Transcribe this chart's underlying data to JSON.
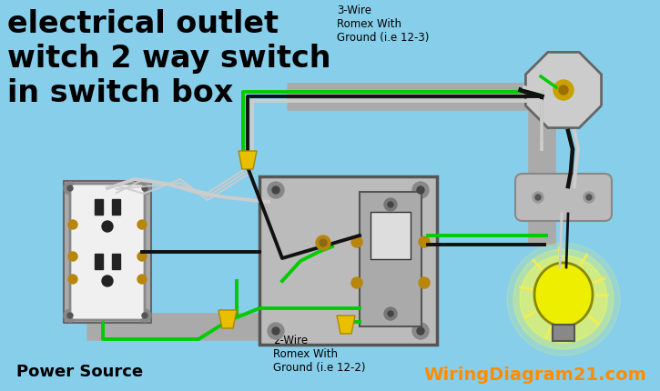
{
  "background_color": "#87CEEB",
  "title_lines": [
    "electrical outlet",
    "witch 2 way switch",
    "in switch box"
  ],
  "title_color": "#000000",
  "title_fontsize": 24,
  "label_3wire": "3-Wire\nRomex With\nGround (i.e 12-3)",
  "label_2wire": "2-Wire\nRomex With\nGround (i.e 12-2)",
  "label_power": "Power Source",
  "label_watermark": "WiringDiagram21.com",
  "watermark_color": "#FF8C00",
  "wire_green": "#00CC00",
  "wire_black": "#111111",
  "wire_white": "#CCCCCC",
  "conduit_gray": "#AAAAAA",
  "fig_width": 7.25,
  "fig_height": 4.31,
  "dpi": 100
}
